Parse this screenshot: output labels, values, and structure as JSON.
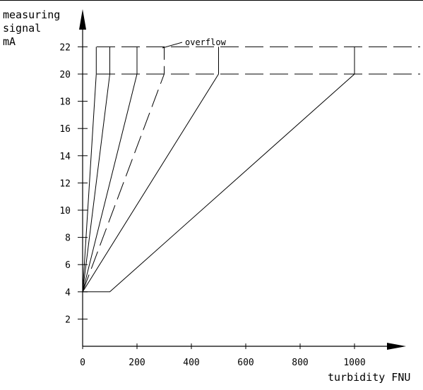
{
  "chart_data": {
    "type": "line",
    "ylabel_lines": [
      "measuring",
      "signal",
      "mA"
    ],
    "xlabel": "turbidity FNU",
    "annotation": "overflow",
    "xlim": [
      0,
      1200
    ],
    "ylim": [
      0,
      24
    ],
    "x_ticks": [
      0,
      200,
      400,
      600,
      800,
      1000
    ],
    "y_ticks": [
      2,
      4,
      6,
      8,
      10,
      12,
      14,
      16,
      18,
      20,
      22
    ],
    "x_tick_labels": [
      "0",
      "200",
      "400",
      "600",
      "800",
      "1000"
    ],
    "y_tick_labels": [
      "2",
      "4",
      "6",
      "8",
      "10",
      "12",
      "14",
      "16",
      "18",
      "20",
      "22"
    ],
    "reference_lines": [
      {
        "y": 20,
        "style": "dashed"
      },
      {
        "y": 22,
        "style": "dashed"
      }
    ],
    "series": [
      {
        "points": [
          [
            0,
            4
          ],
          [
            50,
            20
          ],
          [
            50,
            22
          ]
        ],
        "style": "solid"
      },
      {
        "points": [
          [
            0,
            4
          ],
          [
            100,
            20
          ],
          [
            100,
            22
          ]
        ],
        "style": "solid"
      },
      {
        "points": [
          [
            0,
            4
          ],
          [
            200,
            20
          ],
          [
            200,
            22
          ]
        ],
        "style": "solid"
      },
      {
        "points": [
          [
            0,
            4
          ],
          [
            300,
            20
          ],
          [
            300,
            22
          ]
        ],
        "style": "dashed"
      },
      {
        "points": [
          [
            0,
            4
          ],
          [
            500,
            20
          ],
          [
            500,
            22
          ]
        ],
        "style": "solid"
      },
      {
        "points": [
          [
            0,
            4
          ],
          [
            100,
            4
          ],
          [
            1000,
            20
          ],
          [
            1000,
            22
          ]
        ],
        "style": "solid"
      }
    ]
  }
}
